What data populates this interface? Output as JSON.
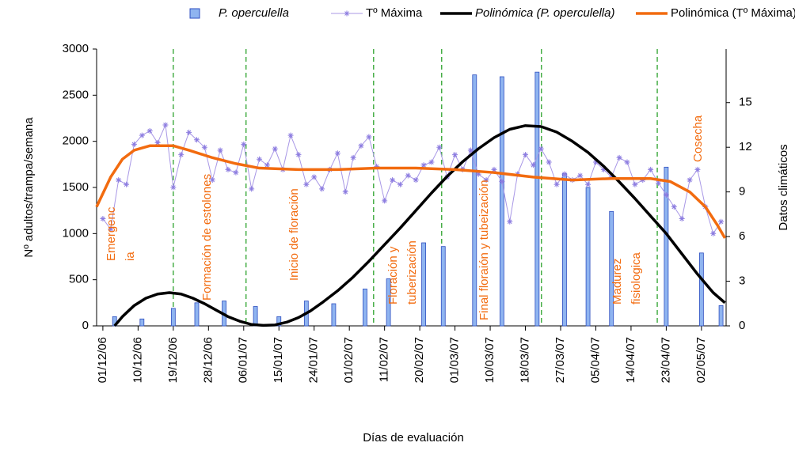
{
  "chart_data": {
    "type": "bar",
    "xlabel": "Días de evaluación",
    "ylabel": "Nº adultos/trampa/semana",
    "y2label": "Datos climáticos",
    "xlim": [
      -1.6,
      159.3
    ],
    "xticks": [
      {
        "value": 0,
        "label": "01/12/06"
      },
      {
        "value": 9,
        "label": "10/12/06"
      },
      {
        "value": 18,
        "label": "19/12/06"
      },
      {
        "value": 27,
        "label": "28/12/06"
      },
      {
        "value": 36,
        "label": "06/01/07"
      },
      {
        "value": 45,
        "label": "15/01/07"
      },
      {
        "value": 54,
        "label": "24/01/07"
      },
      {
        "value": 63,
        "label": "01/02/07"
      },
      {
        "value": 72,
        "label": "11/02/07"
      },
      {
        "value": 81,
        "label": "20/02/07"
      },
      {
        "value": 90,
        "label": "01/03/07"
      },
      {
        "value": 99,
        "label": "10/03/07"
      },
      {
        "value": 108,
        "label": "18/03/07"
      },
      {
        "value": 117,
        "label": "27/03/07"
      },
      {
        "value": 126,
        "label": "05/04/07"
      },
      {
        "value": 135,
        "label": "14/04/07"
      },
      {
        "value": 144,
        "label": "23/04/07"
      },
      {
        "value": 153,
        "label": "02/05/07"
      }
    ],
    "ylim": [
      0,
      3000
    ],
    "yticks": [
      0,
      500,
      1000,
      1500,
      2000,
      2500,
      3000
    ],
    "y2lim": [
      0,
      18.6
    ],
    "y2ticks": [
      0,
      3,
      6,
      9,
      12,
      15
    ],
    "series": [
      {
        "name": "P. operculella",
        "type": "bar",
        "font_style": "italic",
        "color": "#8fb4f0",
        "x": [
          3,
          10,
          18,
          24,
          31,
          39,
          45,
          52,
          59,
          67,
          73,
          82,
          87,
          95,
          102,
          111,
          118,
          124,
          130,
          144,
          153,
          158
        ],
        "values": [
          100,
          75,
          190,
          250,
          270,
          210,
          100,
          270,
          240,
          400,
          510,
          900,
          860,
          2720,
          2700,
          2750,
          1650,
          1500,
          1240,
          1720,
          790,
          220
        ]
      },
      {
        "name": "Tº Máxima",
        "type": "line",
        "marker": "star",
        "font_style": "normal",
        "color": "#a897e6",
        "axis": "y2",
        "x": [
          0,
          2,
          4,
          6,
          8,
          10,
          12,
          14,
          16,
          18,
          20,
          22,
          24,
          26,
          28,
          30,
          32,
          34,
          36,
          38,
          40,
          42,
          44,
          46,
          48,
          50,
          52,
          54,
          56,
          58,
          60,
          62,
          64,
          66,
          68,
          70,
          72,
          74,
          76,
          78,
          80,
          82,
          84,
          86,
          88,
          90,
          92,
          94,
          96,
          98,
          100,
          102,
          104,
          106,
          108,
          110,
          112,
          114,
          116,
          118,
          120,
          122,
          124,
          126,
          128,
          130,
          132,
          134,
          136,
          138,
          140,
          142,
          144,
          146,
          148,
          150,
          152,
          154,
          156,
          158
        ],
        "values": [
          7.2,
          6.5,
          9.8,
          9.5,
          12.2,
          12.8,
          13.1,
          12.3,
          13.5,
          9.3,
          11.5,
          13.0,
          12.5,
          12.0,
          9.8,
          11.8,
          10.5,
          10.3,
          12.2,
          9.2,
          11.2,
          10.8,
          11.9,
          10.5,
          12.8,
          11.5,
          9.5,
          10.0,
          9.2,
          10.5,
          11.6,
          9.0,
          11.3,
          12.1,
          12.7,
          10.7,
          8.4,
          9.8,
          9.5,
          10.1,
          9.8,
          10.8,
          11.0,
          12.0,
          10.0,
          11.5,
          10.5,
          11.8,
          10.2,
          9.8,
          10.5,
          9.7,
          7.0,
          10.2,
          11.5,
          10.8,
          11.9,
          11.0,
          9.5,
          10.2,
          9.8,
          10.1,
          9.5,
          11.0,
          10.5,
          10.0,
          11.3,
          11.0,
          9.5,
          9.8,
          10.5,
          9.6,
          8.8,
          8.0,
          7.2,
          9.8,
          10.5,
          8.0,
          6.2,
          7.0
        ]
      },
      {
        "name": "Polinómica (P. operculella)",
        "type": "line",
        "font_style": "italic",
        "color": "#000000",
        "x": [
          3,
          5,
          8,
          11,
          14,
          17,
          20,
          23,
          26,
          29,
          32,
          35,
          38,
          41,
          44,
          47,
          50,
          53,
          56,
          60,
          64,
          68,
          72,
          76,
          80,
          84,
          88,
          92,
          96,
          100,
          104,
          108,
          112,
          116,
          120,
          124,
          128,
          132,
          136,
          140,
          144,
          148,
          152,
          156,
          159
        ],
        "values": [
          0,
          100,
          220,
          300,
          345,
          360,
          345,
          300,
          240,
          170,
          100,
          50,
          15,
          5,
          10,
          40,
          90,
          160,
          250,
          380,
          530,
          700,
          880,
          1060,
          1250,
          1440,
          1620,
          1780,
          1920,
          2040,
          2130,
          2170,
          2160,
          2100,
          2000,
          1880,
          1730,
          1560,
          1380,
          1190,
          1000,
          780,
          560,
          360,
          250
        ]
      },
      {
        "name": "Polinómica (Tº Máxima)",
        "type": "line",
        "font_style": "normal",
        "color": "#f26b0f",
        "axis": "y2",
        "x": [
          -1.6,
          2,
          5,
          8,
          12,
          18,
          22,
          28,
          34,
          40,
          50,
          60,
          70,
          80,
          90,
          100,
          110,
          120,
          130,
          140,
          145,
          150,
          154,
          157,
          159
        ],
        "values": [
          8,
          10,
          11.2,
          11.8,
          12.1,
          12.1,
          11.8,
          11.3,
          10.9,
          10.6,
          10.5,
          10.5,
          10.6,
          10.6,
          10.5,
          10.3,
          10.0,
          9.8,
          9.9,
          9.9,
          9.7,
          9.0,
          8,
          6.8,
          5.9
        ]
      }
    ],
    "phase_lines": [
      18,
      36.6,
      69.2,
      86.6,
      112.1,
      141.7
    ],
    "phase_color": "#1a9a1a",
    "annotation_color": "#f26b0f",
    "annotations": [
      [
        "Emergenc",
        "ia"
      ],
      [
        "Formación de estolones"
      ],
      [
        "Inicio de floración"
      ],
      [
        "Floración y",
        "tuberización"
      ],
      [
        "Final floraión y tubeización"
      ],
      [
        "Madurez",
        "fisiologica"
      ],
      [
        "Cosecha"
      ]
    ]
  }
}
